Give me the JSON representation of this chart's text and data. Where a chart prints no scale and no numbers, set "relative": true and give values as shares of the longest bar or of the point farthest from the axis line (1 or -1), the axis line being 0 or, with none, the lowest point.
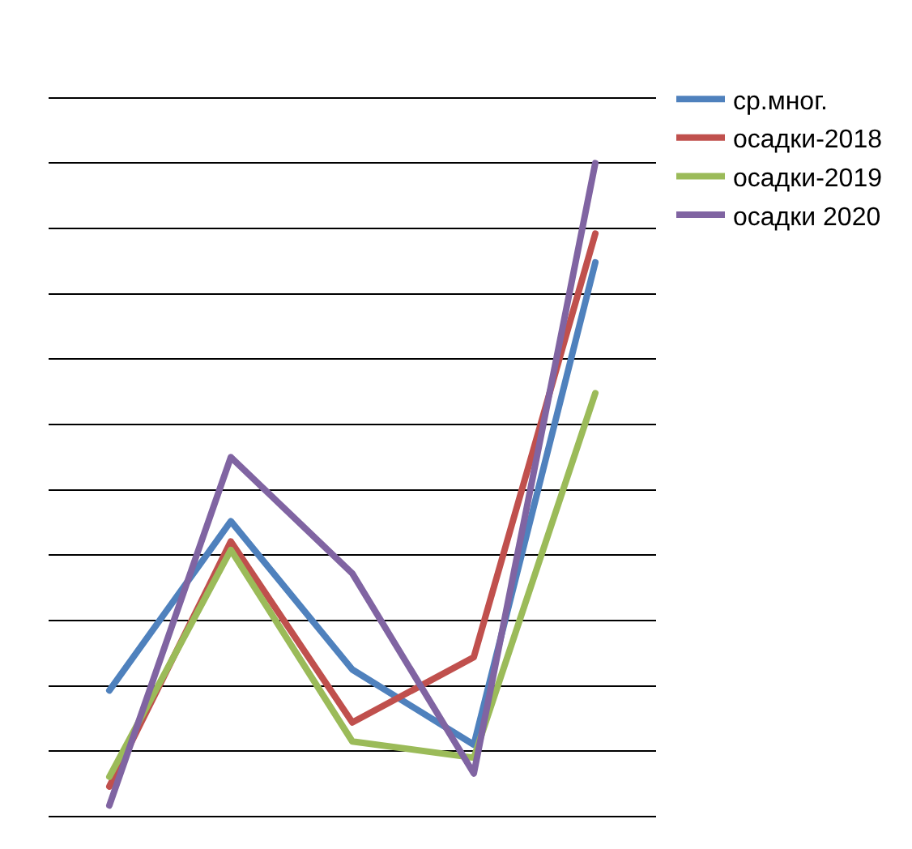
{
  "chart_data": {
    "type": "line",
    "relative": true,
    "grid": "y",
    "legend": "right",
    "marker": "none",
    "line_style": "solid",
    "categories": [
      null,
      null,
      null,
      null,
      null
    ],
    "series": [
      {
        "name": "ср.мног.",
        "color": "#4f81bd",
        "values": [
          0.193,
          0.452,
          0.225,
          0.11,
          0.848
        ]
      },
      {
        "name": "осадки-2018",
        "color": "#c0504d",
        "values": [
          0.046,
          0.421,
          0.144,
          0.244,
          0.892
        ]
      },
      {
        "name": "осадки-2019",
        "color": "#9bbb59",
        "values": [
          0.061,
          0.408,
          0.115,
          0.09,
          0.648
        ]
      },
      {
        "name": "осадки 2020",
        "color": "#8064a2",
        "values": [
          0.017,
          0.55,
          0.372,
          0.066,
          1.0
        ]
      }
    ]
  }
}
